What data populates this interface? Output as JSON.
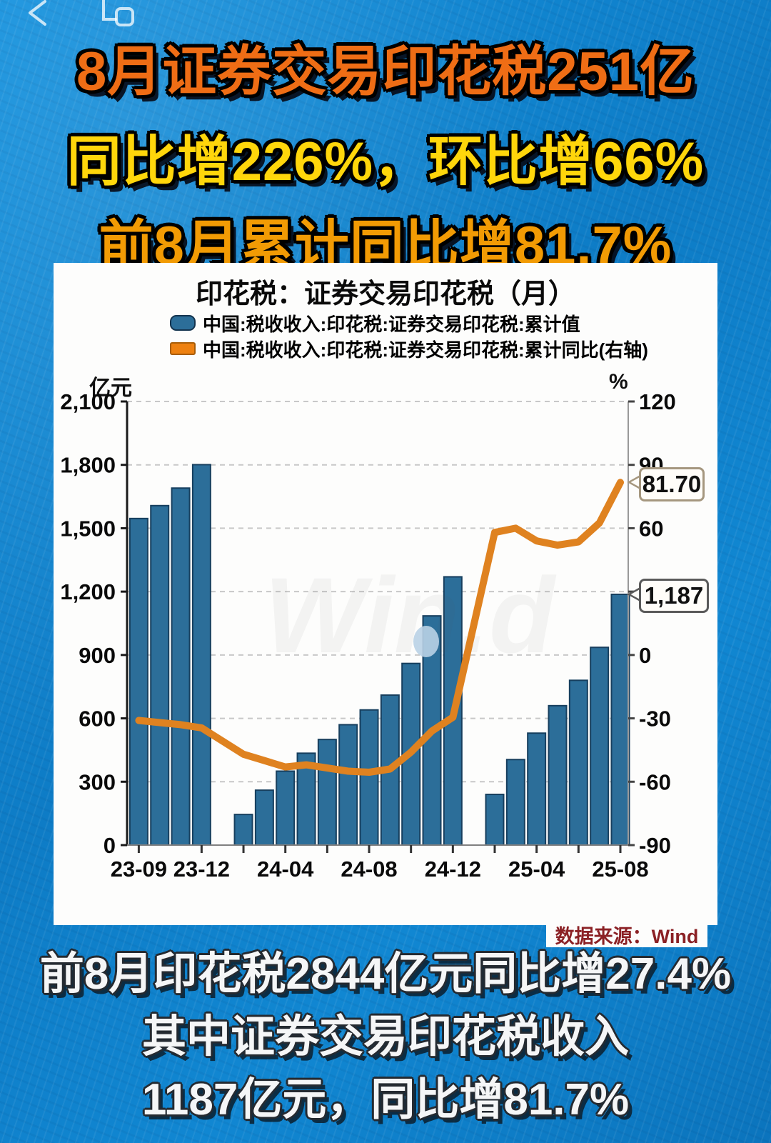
{
  "status_bar": {
    "back_icon": "back-chevron",
    "window_icon": "overlapping-windows"
  },
  "headline": {
    "line1": "8月证券交易印花税251亿",
    "line2": "同比增226%，环比增66%",
    "line3": "前8月累计同比增81.7%"
  },
  "chart": {
    "title": "印花税：证券交易印花税（月）",
    "legend": [
      {
        "label": "中国:税收收入:印花税:证券交易印花税:累计值",
        "color": "#2c6e99",
        "type": "bar"
      },
      {
        "label": "中国:税收收入:印花税:证券交易印花税:累计同比(右轴)",
        "color": "#ee8110",
        "type": "line"
      }
    ],
    "left_axis": {
      "unit": "亿元",
      "tick_values": [
        2100,
        1800,
        1500,
        1200,
        900,
        600,
        300,
        0
      ],
      "tick_labels": [
        "2,100",
        "1,800",
        "1,500",
        "1,200",
        "900",
        "600",
        "300",
        "0"
      ],
      "min": 0,
      "max": 2100
    },
    "right_axis": {
      "unit": "%",
      "tick_values": [
        120,
        90,
        60,
        30,
        0,
        -30,
        -60,
        -90
      ],
      "tick_labels": [
        "120",
        "90",
        "60",
        "30",
        "0",
        "-30",
        "-60",
        "-90"
      ],
      "min": -90,
      "max": 120
    },
    "callouts": {
      "line_value": "81.70",
      "bar_value": "1,187"
    },
    "source": "数据来源：Wind",
    "watermark": "Win.d",
    "colors": {
      "bar_fill": "#2c6e99",
      "bar_stroke": "#173f5e",
      "line": "#df8220",
      "grid": "#c8c8c8"
    }
  },
  "chart_data": {
    "type": "bar+line",
    "months": [
      "23-09",
      "23-10",
      "23-11",
      "23-12",
      "24-01",
      "24-02",
      "24-03",
      "24-04",
      "24-05",
      "24-06",
      "24-07",
      "24-08",
      "24-09",
      "24-10",
      "24-11",
      "24-12",
      "25-01",
      "25-02",
      "25-03",
      "25-04",
      "25-05",
      "25-06",
      "25-07",
      "25-08"
    ],
    "x_tick_labels": [
      "23-09",
      "23-12",
      "24-04",
      "24-08",
      "24-12",
      "25-04",
      "25-08"
    ],
    "x_label_indices": [
      0,
      3,
      7,
      11,
      15,
      19,
      23
    ],
    "x_tick_indices": [
      0,
      3,
      5,
      7,
      9,
      11,
      13,
      15,
      17,
      19,
      21,
      23
    ],
    "series": [
      {
        "name": "中国:税收收入:印花税:证券交易印花税:累计值",
        "axis": "left",
        "unit": "亿元",
        "values": [
          1546,
          1607,
          1690,
          1801,
          null,
          145,
          260,
          350,
          435,
          500,
          570,
          640,
          710,
          860,
          1085,
          1270,
          null,
          240,
          405,
          530,
          660,
          780,
          936,
          1187
        ]
      },
      {
        "name": "中国:税收收入:印花税:证券交易印花税:累计同比(右轴)",
        "axis": "right",
        "unit": "%",
        "values": [
          -31,
          -32,
          -33,
          -34.5,
          null,
          -47,
          -50,
          -53,
          -52,
          -53.5,
          -55,
          -55.5,
          -54,
          -46,
          -36,
          -29.5,
          null,
          58,
          60,
          54,
          52,
          53.5,
          62.5,
          81.7
        ]
      }
    ],
    "ylim_left": [
      0,
      2100
    ],
    "ylim_right": [
      -90,
      120
    ],
    "grid": true,
    "legend_position": "top"
  },
  "footer": {
    "line1": "前8月印花税2844亿元同比增27.4%",
    "line2": "其中证券交易印花税收入",
    "line3": "1187亿元，同比增81.7%"
  }
}
